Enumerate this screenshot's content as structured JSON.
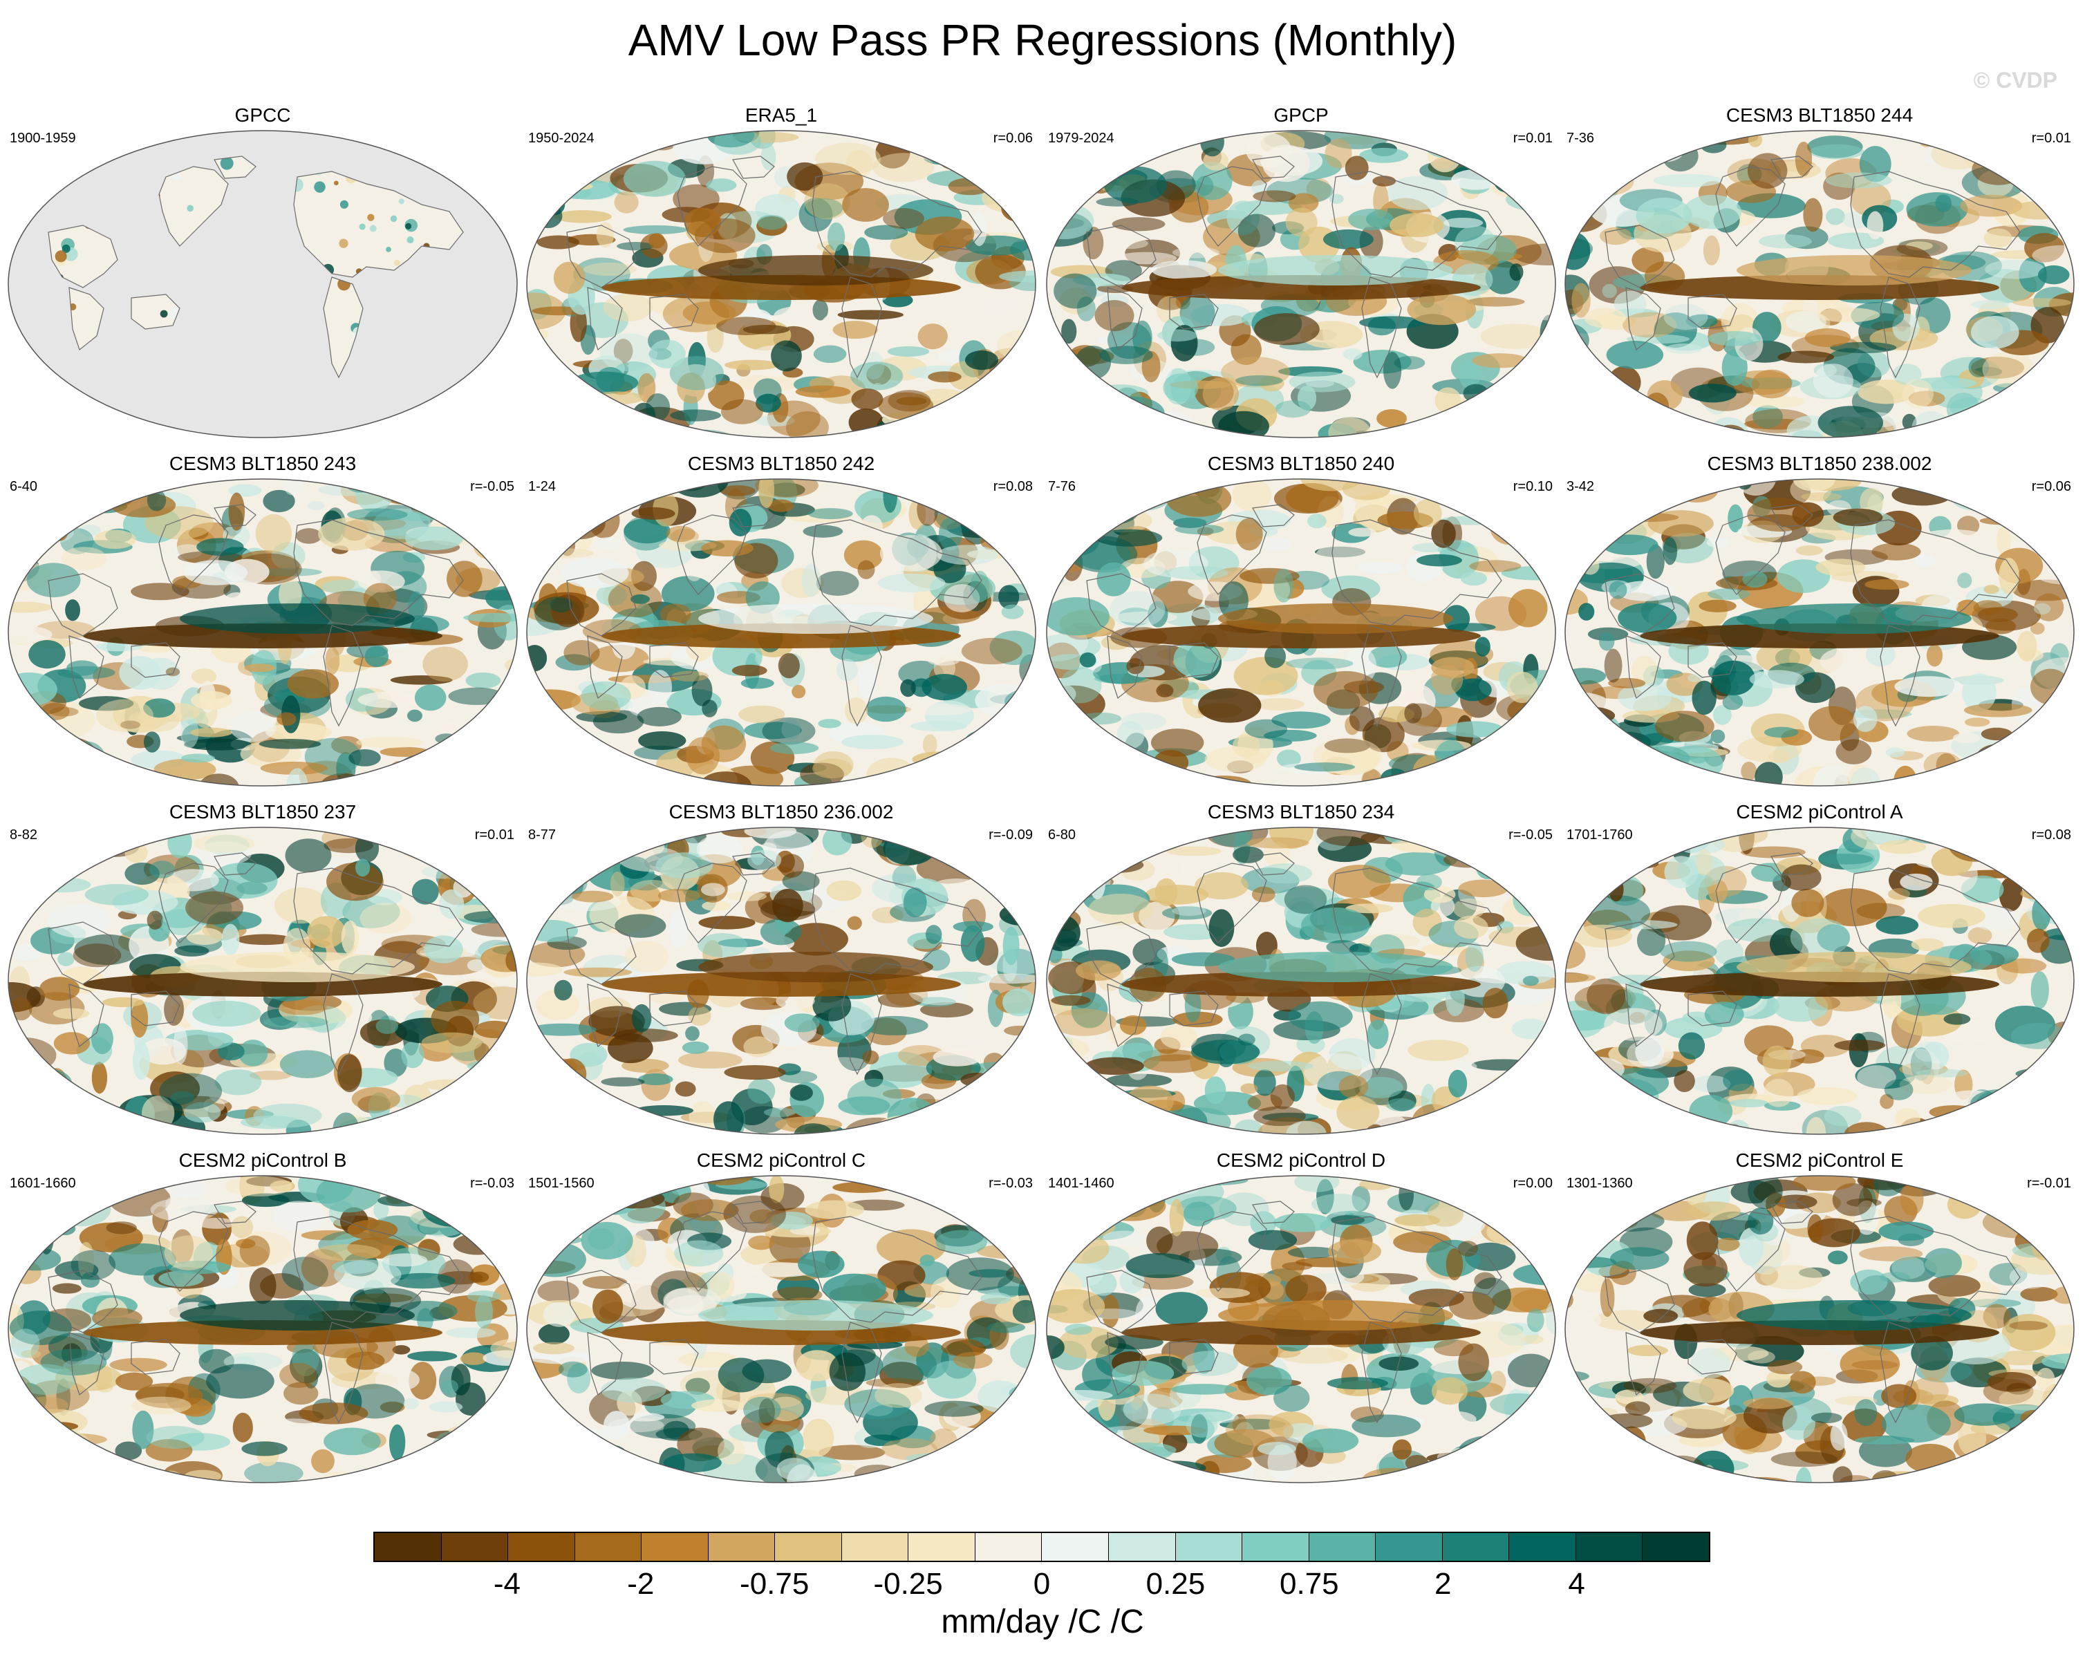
{
  "title": "AMV Low Pass PR Regressions (Monthly)",
  "watermark": "© CVDP",
  "units": "mm/day /C /C",
  "colorbar": {
    "colors": [
      "#543005",
      "#6f3f0b",
      "#8c510a",
      "#a66a1c",
      "#bf812d",
      "#d2a660",
      "#dfc27d",
      "#eedcac",
      "#f6e8c3",
      "#f5f0e6",
      "#eef4f2",
      "#cdeae5",
      "#a8ddd3",
      "#80cdc1",
      "#5ab3a6",
      "#35978f",
      "#1d8177",
      "#01665e",
      "#024e45",
      "#003c30"
    ],
    "labels": [
      "-4",
      "-2",
      "-0.75",
      "-0.25",
      "0",
      "0.25",
      "0.75",
      "2",
      "4"
    ]
  },
  "panels": [
    {
      "title": "GPCC",
      "years": "1900-1959",
      "r": "",
      "land_only": true
    },
    {
      "title": "ERA5_1",
      "years": "1950-2024",
      "r": "r=0.06"
    },
    {
      "title": "GPCP",
      "years": "1979-2024",
      "r": "r=0.01"
    },
    {
      "title": "CESM3 BLT1850 244",
      "years": "7-36",
      "r": "r=0.01"
    },
    {
      "title": "CESM3 BLT1850 243",
      "years": "6-40",
      "r": "r=-0.05"
    },
    {
      "title": "CESM3 BLT1850 242",
      "years": "1-24",
      "r": "r=0.08"
    },
    {
      "title": "CESM3 BLT1850 240",
      "years": "7-76",
      "r": "r=0.10"
    },
    {
      "title": "CESM3 BLT1850 238.002",
      "years": "3-42",
      "r": "r=0.06"
    },
    {
      "title": "CESM3 BLT1850 237",
      "years": "8-82",
      "r": "r=0.01"
    },
    {
      "title": "CESM3 BLT1850 236.002",
      "years": "8-77",
      "r": "r=-0.09"
    },
    {
      "title": "CESM3 BLT1850 234",
      "years": "6-80",
      "r": "r=-0.05"
    },
    {
      "title": "CESM2 piControl A",
      "years": "1701-1760",
      "r": "r=0.08"
    },
    {
      "title": "CESM2 piControl B",
      "years": "1601-1660",
      "r": "r=-0.03"
    },
    {
      "title": "CESM2 piControl C",
      "years": "1501-1560",
      "r": "r=-0.03"
    },
    {
      "title": "CESM2 piControl D",
      "years": "1401-1460",
      "r": "r=0.00"
    },
    {
      "title": "CESM2 piControl E",
      "years": "1301-1360",
      "r": "r=-0.01"
    }
  ]
}
